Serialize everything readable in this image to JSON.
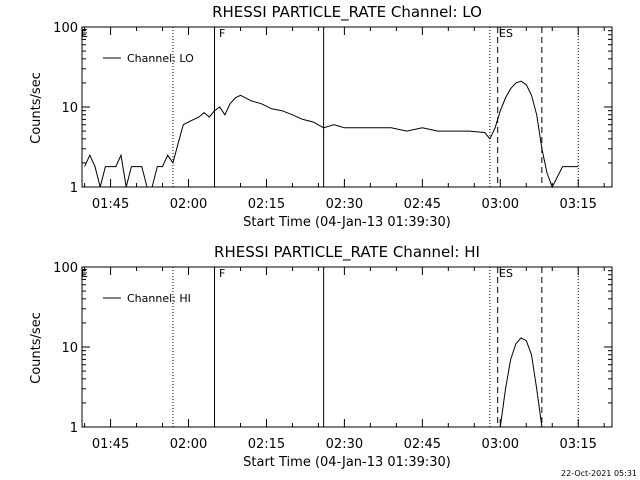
{
  "chart_data": [
    {
      "type": "line",
      "title": "RHESSI PARTICLE_RATE Channel: LO",
      "xlabel": "Start Time (04-Jan-13 01:39:30)",
      "ylabel": "Counts/sec",
      "yscale": "log",
      "ylim": [
        1,
        100
      ],
      "xlim": [
        "01:39:30",
        "03:21:30"
      ],
      "yticks": [
        "1",
        "10",
        "100"
      ],
      "xticks": [
        "01:45",
        "02:00",
        "02:15",
        "02:30",
        "02:45",
        "03:00",
        "03:15"
      ],
      "legend": {
        "placement": "top-left",
        "entries": [
          "Channel: LO"
        ]
      },
      "flag_labels": [
        {
          "text": "E",
          "x": "01:39:30"
        },
        {
          "text": "F",
          "x": "02:05"
        },
        {
          "text": "ES",
          "x": "02:59"
        }
      ],
      "vlines": [
        {
          "x": "01:57",
          "style": "dotted"
        },
        {
          "x": "02:05",
          "style": "solid"
        },
        {
          "x": "02:26",
          "style": "solid"
        },
        {
          "x": "02:58",
          "style": "dotted"
        },
        {
          "x": "02:59:30",
          "style": "dashed"
        },
        {
          "x": "03:08",
          "style": "dashed"
        },
        {
          "x": "03:15",
          "style": "dotted"
        }
      ],
      "series": [
        {
          "x": [
            "01:40",
            "01:41",
            "01:42",
            "01:43",
            "01:44",
            "01:45",
            "01:46",
            "01:47",
            "01:48",
            "01:49",
            "01:50",
            "01:51",
            "01:52",
            "01:53",
            "01:54",
            "01:55",
            "01:56",
            "01:57",
            "01:58",
            "01:59",
            "02:00",
            "02:01",
            "02:02",
            "02:03",
            "02:04",
            "02:05",
            "02:06",
            "02:07",
            "02:08",
            "02:09",
            "02:10",
            "02:12",
            "02:14",
            "02:16",
            "02:18",
            "02:20",
            "02:22",
            "02:24",
            "02:26",
            "02:28",
            "02:30",
            "02:33",
            "02:36",
            "02:39",
            "02:42",
            "02:45",
            "02:48",
            "02:51",
            "02:54",
            "02:57",
            "02:58",
            "02:59",
            "03:00",
            "03:01",
            "03:02",
            "03:03",
            "03:04",
            "03:05",
            "03:06",
            "03:07",
            "03:08",
            "03:09",
            "03:10",
            "03:12",
            "03:14",
            "03:15"
          ],
          "values": [
            1.8,
            2.5,
            1.8,
            1,
            1.8,
            1.8,
            1.8,
            2.5,
            1,
            1.8,
            1.8,
            1.8,
            1,
            1,
            1.8,
            1.8,
            2.5,
            2,
            3.5,
            6,
            6.5,
            7,
            7.5,
            8.5,
            7.5,
            9,
            10,
            8,
            11,
            13,
            14,
            12,
            11,
            9.5,
            9,
            8,
            7,
            6.5,
            5.5,
            6,
            5.5,
            5.5,
            5.5,
            5.5,
            5,
            5.5,
            5,
            5,
            5,
            4.8,
            4,
            5.5,
            9,
            13,
            17,
            20,
            21,
            19,
            14,
            8,
            3,
            1.5,
            1,
            1.8,
            1.8,
            1.8
          ]
        }
      ]
    },
    {
      "type": "line",
      "title": "RHESSI PARTICLE_RATE Channel: HI",
      "xlabel": "Start Time (04-Jan-13 01:39:30)",
      "ylabel": "Counts/sec",
      "yscale": "log",
      "ylim": [
        1,
        100
      ],
      "xlim": [
        "01:39:30",
        "03:21:30"
      ],
      "yticks": [
        "1",
        "10",
        "100"
      ],
      "xticks": [
        "01:45",
        "02:00",
        "02:15",
        "02:30",
        "02:45",
        "03:00",
        "03:15"
      ],
      "legend": {
        "placement": "top-left",
        "entries": [
          "Channel: HI"
        ]
      },
      "flag_labels": [
        {
          "text": "E",
          "x": "01:39:30"
        },
        {
          "text": "F",
          "x": "02:05"
        },
        {
          "text": "ES",
          "x": "02:59"
        }
      ],
      "vlines": [
        {
          "x": "01:57",
          "style": "dotted"
        },
        {
          "x": "02:05",
          "style": "solid"
        },
        {
          "x": "02:26",
          "style": "solid"
        },
        {
          "x": "02:58",
          "style": "dotted"
        },
        {
          "x": "02:59:30",
          "style": "dashed"
        },
        {
          "x": "03:08",
          "style": "dashed"
        },
        {
          "x": "03:15",
          "style": "dotted"
        }
      ],
      "series": [
        {
          "x": [
            "03:00",
            "03:01",
            "03:02",
            "03:03",
            "03:04",
            "03:05",
            "03:06",
            "03:07",
            "03:08"
          ],
          "values": [
            1,
            3,
            7,
            11,
            13,
            12,
            8,
            3,
            1
          ]
        }
      ]
    }
  ],
  "timestamp": "22-Oct-2021 05:31"
}
